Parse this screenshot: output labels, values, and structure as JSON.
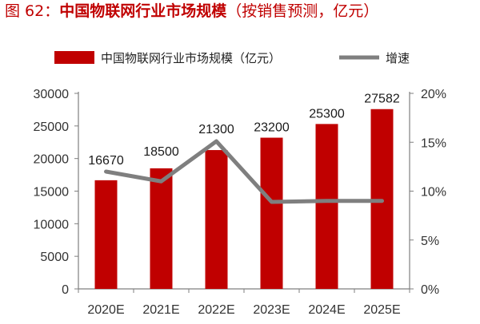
{
  "figure_title": {
    "label": "图 62：",
    "main": "中国物联网行业市场规模",
    "suffix": "（按销售预测，亿元）"
  },
  "colors": {
    "bar": "#c00000",
    "line": "#7f7f7f",
    "axis": "#7f7f7f",
    "title": "#c00000"
  },
  "chart_data": {
    "type": "bar",
    "categories": [
      "2020E",
      "2021E",
      "2022E",
      "2023E",
      "2024E",
      "2025E"
    ],
    "series": [
      {
        "name": "中国物联网行业市场规模（亿元）",
        "type": "bar",
        "axis": "left",
        "values": [
          16670,
          18500,
          21300,
          23200,
          25300,
          27582
        ]
      },
      {
        "name": "增速",
        "type": "line",
        "axis": "right",
        "values": [
          0.12,
          0.11,
          0.151,
          0.089,
          0.09,
          0.09
        ]
      }
    ],
    "data_labels": [
      "16670",
      "18500",
      "21300",
      "23200",
      "25300",
      "27582"
    ],
    "y_left": {
      "lim": [
        0,
        30000
      ],
      "ticks": [
        "0",
        "5000",
        "10000",
        "15000",
        "20000",
        "25000",
        "30000"
      ]
    },
    "y_right": {
      "lim": [
        0,
        0.2
      ],
      "ticks": [
        "0%",
        "5%",
        "10%",
        "15%",
        "20%"
      ]
    },
    "legend": {
      "position": "top"
    },
    "grid": false
  }
}
